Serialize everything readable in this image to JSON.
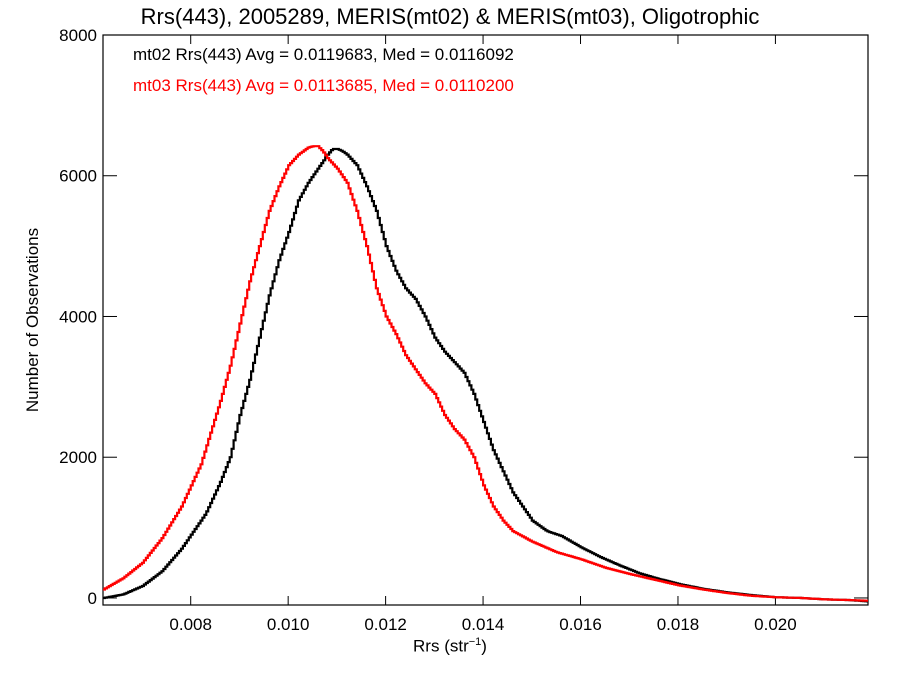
{
  "chart_data": {
    "type": "line",
    "title": "Rrs(443), 2005289, MERIS(mt02) & MERIS(mt03), Oligotrophic",
    "xlabel": "Rrs (str",
    "xlabel_unit_sup": "−1",
    "xlabel_close": ")",
    "ylabel": "Number of Observations",
    "xlim": [
      0.0062,
      0.0219
    ],
    "ylim": [
      -100,
      8000
    ],
    "xticks": [
      0.008,
      0.01,
      0.012,
      0.014,
      0.016,
      0.018,
      0.02
    ],
    "xtick_labels": [
      "0.008",
      "0.010",
      "0.012",
      "0.014",
      "0.016",
      "0.018",
      "0.020"
    ],
    "yticks": [
      0,
      2000,
      4000,
      6000,
      8000
    ],
    "ytick_labels": [
      "0",
      "2000",
      "4000",
      "6000",
      "8000"
    ],
    "legend_placement": "top-left",
    "annotations": [
      {
        "text": "mt02 Rrs(443) Avg = 0.0119683, Med = 0.0116092",
        "color": "#000000"
      },
      {
        "text": "mt03 Rrs(443) Avg = 0.0113685, Med = 0.0110200",
        "color": "#ff0000"
      }
    ],
    "series": [
      {
        "color": "#000000",
        "x": [
          0.0062,
          0.0066,
          0.007,
          0.0074,
          0.0078,
          0.008,
          0.0083,
          0.0086,
          0.0088,
          0.009,
          0.0092,
          0.0094,
          0.0096,
          0.0098,
          0.01,
          0.0102,
          0.0104,
          0.0106,
          0.0107,
          0.0108,
          0.0109,
          0.011,
          0.0111,
          0.0112,
          0.0114,
          0.0116,
          0.0118,
          0.012,
          0.0122,
          0.0124,
          0.0126,
          0.0128,
          0.013,
          0.0132,
          0.0134,
          0.0136,
          0.0138,
          0.014,
          0.0142,
          0.0144,
          0.0146,
          0.0148,
          0.015,
          0.0153,
          0.0156,
          0.016,
          0.0164,
          0.0168,
          0.0172,
          0.0176,
          0.018,
          0.0185,
          0.019,
          0.0195,
          0.02,
          0.0205,
          0.021,
          0.0215,
          0.0219
        ],
        "y": [
          0,
          50,
          170,
          380,
          700,
          900,
          1200,
          1650,
          2000,
          2600,
          3100,
          3700,
          4300,
          4800,
          5200,
          5650,
          5900,
          6100,
          6200,
          6300,
          6380,
          6380,
          6350,
          6300,
          6150,
          5850,
          5500,
          5000,
          4650,
          4400,
          4250,
          4000,
          3700,
          3500,
          3350,
          3200,
          2900,
          2500,
          2100,
          1800,
          1500,
          1300,
          1100,
          950,
          880,
          720,
          580,
          460,
          350,
          270,
          200,
          130,
          80,
          40,
          10,
          0,
          -20,
          -30,
          -50
        ]
      },
      {
        "color": "#ff0000",
        "x": [
          0.0062,
          0.0066,
          0.007,
          0.0074,
          0.0078,
          0.008,
          0.0082,
          0.0084,
          0.0086,
          0.0088,
          0.009,
          0.0092,
          0.0094,
          0.0096,
          0.0098,
          0.01,
          0.0102,
          0.0104,
          0.0105,
          0.0106,
          0.0107,
          0.0108,
          0.011,
          0.0112,
          0.0114,
          0.0116,
          0.0118,
          0.012,
          0.0122,
          0.0124,
          0.0126,
          0.0128,
          0.013,
          0.0132,
          0.0134,
          0.0136,
          0.0138,
          0.014,
          0.0142,
          0.0144,
          0.0146,
          0.015,
          0.0155,
          0.016,
          0.0165,
          0.017,
          0.0175,
          0.018,
          0.0185,
          0.019,
          0.0195,
          0.02,
          0.0205,
          0.021,
          0.0215,
          0.0219
        ],
        "y": [
          120,
          280,
          500,
          850,
          1300,
          1600,
          1900,
          2350,
          2800,
          3300,
          3900,
          4500,
          5000,
          5500,
          5850,
          6150,
          6300,
          6400,
          6420,
          6420,
          6350,
          6250,
          6100,
          5900,
          5500,
          5000,
          4400,
          4000,
          3750,
          3450,
          3250,
          3050,
          2900,
          2600,
          2400,
          2250,
          2000,
          1600,
          1300,
          1100,
          950,
          800,
          650,
          550,
          430,
          340,
          260,
          180,
          120,
          70,
          30,
          10,
          0,
          -20,
          -30,
          -40
        ]
      }
    ]
  }
}
